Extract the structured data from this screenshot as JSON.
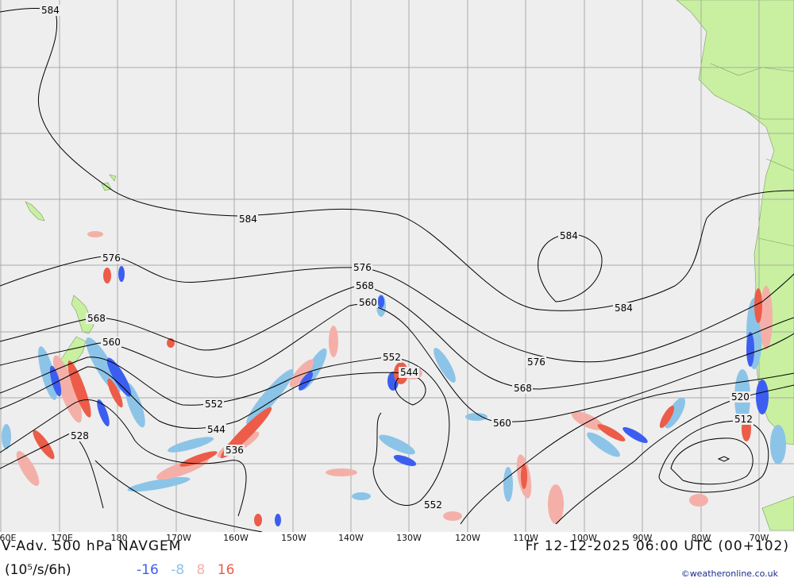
{
  "map": {
    "colors": {
      "ocean": "#eeeeee",
      "land": "#c8f0a0",
      "grid": "#aaaaaa",
      "neg_strong": "#3c5ef0",
      "neg_weak": "#8cc4e8",
      "pos_weak": "#f4b0a8",
      "pos_strong": "#ec5c48"
    },
    "contour_labels": {
      "c584_nw": "584",
      "c584_mid": "584",
      "c584_cell": "584",
      "c584_east": "584",
      "c576_west": "576",
      "c576_mid": "576",
      "c576_east": "576",
      "c568_west": "568",
      "c568_mid": "568",
      "c568_east": "568",
      "c560_west": "560",
      "c560_mid": "560",
      "c560_east": "560",
      "c552_west": "552",
      "c552_mid": "552",
      "c552_south": "552",
      "c544_west": "544",
      "c544_mid": "544",
      "c536_west": "536",
      "c528_west": "528",
      "c520_east": "520",
      "c512_east": "512"
    }
  },
  "axis": {
    "lon_ticks": [
      "60E",
      "170E",
      "180",
      "170W",
      "160W",
      "150W",
      "140W",
      "130W",
      "120W",
      "110W",
      "100W",
      "90W",
      "80W",
      "70W"
    ]
  },
  "footer": {
    "title_left": "V-Adv. 500 hPa  NAVGEM",
    "title_right": "Fr 12-12-2025 06:00 UTC (00+102)",
    "units": "(10⁵/s/6h)",
    "legend": [
      {
        "label": "-16",
        "color": "#3c5ef0"
      },
      {
        "label": "-8",
        "color": "#8cc4e8"
      },
      {
        "label": "8",
        "color": "#f4b0a8"
      },
      {
        "label": "16",
        "color": "#ec5c48"
      }
    ],
    "credit": "©weatheronline.co.uk"
  }
}
